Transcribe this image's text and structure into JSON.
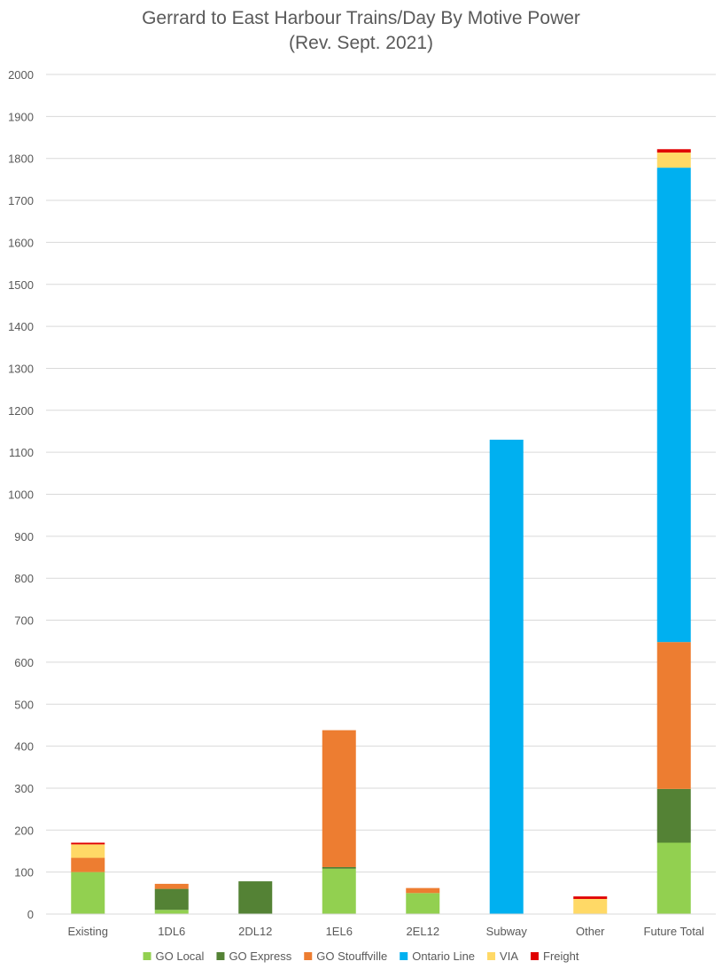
{
  "chart_data": {
    "type": "bar",
    "stacked": true,
    "title": [
      "Gerrard to East Harbour Trains/Day By Motive Power",
      "(Rev. Sept. 2021)"
    ],
    "xlabel": "",
    "ylabel": "",
    "ylim": [
      0,
      2000
    ],
    "yticks": [
      0,
      100,
      200,
      300,
      400,
      500,
      600,
      700,
      800,
      900,
      1000,
      1100,
      1200,
      1300,
      1400,
      1500,
      1600,
      1700,
      1800,
      1900,
      2000
    ],
    "grid": true,
    "legend_position": "bottom",
    "categories": [
      "Existing",
      "1DL6",
      "2DL12",
      "1EL6",
      "2EL12",
      "Subway",
      "Other",
      "Future Total"
    ],
    "series": [
      {
        "name": "GO Local",
        "color": "#92D050",
        "values": [
          100,
          10,
          0,
          108,
          50,
          0,
          0,
          170
        ]
      },
      {
        "name": "GO Express",
        "color": "#548235",
        "values": [
          0,
          50,
          78,
          4,
          0,
          0,
          0,
          128
        ]
      },
      {
        "name": "GO Stouffville",
        "color": "#ED7D31",
        "values": [
          34,
          12,
          0,
          326,
          12,
          0,
          0,
          350
        ]
      },
      {
        "name": "Ontario Line",
        "color": "#00B0F0",
        "values": [
          0,
          0,
          0,
          0,
          0,
          1130,
          0,
          1130
        ]
      },
      {
        "name": "VIA",
        "color": "#FFD966",
        "values": [
          32,
          0,
          0,
          0,
          0,
          0,
          36,
          36
        ]
      },
      {
        "name": "Freight",
        "color": "#E00000",
        "values": [
          4,
          0,
          0,
          0,
          0,
          0,
          6,
          8
        ]
      }
    ]
  }
}
